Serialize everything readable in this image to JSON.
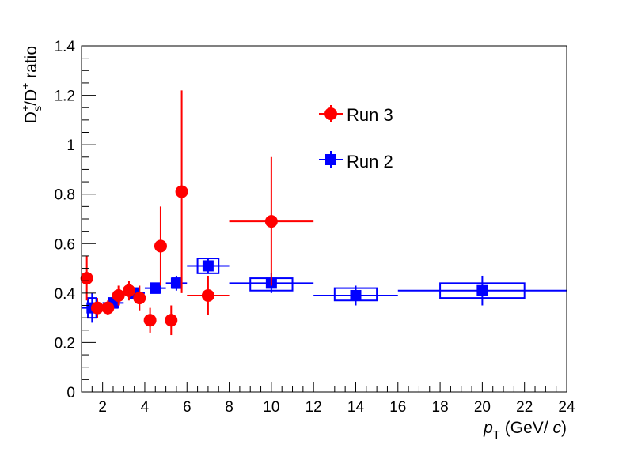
{
  "chart_data": {
    "type": "scatter",
    "title": "",
    "xlabel": {
      "var": "p",
      "sub": "T",
      "unit_pre": " (GeV/",
      "unit_var": " c",
      "unit_post": ")"
    },
    "ylabel": {
      "pre": "D",
      "sup1": "+",
      "sub1": "s",
      "mid": "/D",
      "sup2": "+",
      "post": " ratio"
    },
    "xlim": [
      1,
      24
    ],
    "ylim": [
      0,
      1.4
    ],
    "xticks": [
      2,
      4,
      6,
      8,
      10,
      12,
      14,
      16,
      18,
      20,
      22,
      24
    ],
    "yticks": [
      0,
      0.2,
      0.4,
      0.6,
      0.8,
      1,
      1.2,
      1.4
    ],
    "xtick_labels": [
      "2",
      "4",
      "6",
      "8",
      "10",
      "12",
      "14",
      "16",
      "18",
      "20",
      "22",
      "24"
    ],
    "ytick_labels": [
      "0",
      "0.2",
      "0.4",
      "0.6",
      "0.8",
      "1",
      "1.2",
      "1.4"
    ],
    "legend_position": "top-center",
    "grid": false,
    "series": [
      {
        "name": "Run 3",
        "color": "#ff0000",
        "marker": "circle",
        "points": [
          {
            "x": 1.25,
            "xlo": 1.0,
            "xhi": 1.5,
            "y": 0.46,
            "ylo": 0.37,
            "yhi": 0.55
          },
          {
            "x": 1.75,
            "xlo": 1.5,
            "xhi": 2.0,
            "y": 0.34,
            "ylo": 0.3,
            "yhi": 0.38
          },
          {
            "x": 2.25,
            "xlo": 2.0,
            "xhi": 2.5,
            "y": 0.34,
            "ylo": 0.31,
            "yhi": 0.37
          },
          {
            "x": 2.75,
            "xlo": 2.5,
            "xhi": 3.0,
            "y": 0.39,
            "ylo": 0.35,
            "yhi": 0.43
          },
          {
            "x": 3.25,
            "xlo": 3.0,
            "xhi": 3.5,
            "y": 0.41,
            "ylo": 0.37,
            "yhi": 0.45
          },
          {
            "x": 3.75,
            "xlo": 3.5,
            "xhi": 4.0,
            "y": 0.38,
            "ylo": 0.33,
            "yhi": 0.43
          },
          {
            "x": 4.25,
            "xlo": 4.0,
            "xhi": 4.5,
            "y": 0.29,
            "ylo": 0.24,
            "yhi": 0.34
          },
          {
            "x": 4.75,
            "xlo": 4.5,
            "xhi": 5.0,
            "y": 0.59,
            "ylo": 0.43,
            "yhi": 0.75
          },
          {
            "x": 5.25,
            "xlo": 5.0,
            "xhi": 5.5,
            "y": 0.29,
            "ylo": 0.23,
            "yhi": 0.35
          },
          {
            "x": 5.75,
            "xlo": 5.5,
            "xhi": 6.0,
            "y": 0.81,
            "ylo": 0.4,
            "yhi": 1.22
          },
          {
            "x": 7.0,
            "xlo": 6.0,
            "xhi": 8.0,
            "y": 0.39,
            "ylo": 0.31,
            "yhi": 0.47
          },
          {
            "x": 10.0,
            "xlo": 8.0,
            "xhi": 12.0,
            "y": 0.69,
            "ylo": 0.43,
            "yhi": 0.95
          }
        ]
      },
      {
        "name": "Run 2",
        "color": "#0000ff",
        "marker": "square",
        "points": [
          {
            "x": 1.5,
            "xlo": 1.0,
            "xhi": 2.0,
            "y": 0.34,
            "ylo": 0.28,
            "yhi": 0.4,
            "syslo": 0.3,
            "syshi": 0.38,
            "sysw": 0.4
          },
          {
            "x": 2.5,
            "xlo": 2.0,
            "xhi": 3.0,
            "y": 0.36,
            "ylo": 0.34,
            "yhi": 0.38,
            "syslo": 0.34,
            "syshi": 0.38,
            "sysw": 0.4
          },
          {
            "x": 3.5,
            "xlo": 3.0,
            "xhi": 4.0,
            "y": 0.4,
            "ylo": 0.38,
            "yhi": 0.42,
            "syslo": 0.38,
            "syshi": 0.42,
            "sysw": 0.4
          },
          {
            "x": 4.5,
            "xlo": 4.0,
            "xhi": 5.0,
            "y": 0.42,
            "ylo": 0.4,
            "yhi": 0.44,
            "syslo": 0.4,
            "syshi": 0.44,
            "sysw": 0.4
          },
          {
            "x": 5.5,
            "xlo": 5.0,
            "xhi": 6.0,
            "y": 0.44,
            "ylo": 0.41,
            "yhi": 0.47,
            "syslo": 0.42,
            "syshi": 0.46,
            "sysw": 0.4
          },
          {
            "x": 7.0,
            "xlo": 6.0,
            "xhi": 8.0,
            "y": 0.51,
            "ylo": 0.48,
            "yhi": 0.54,
            "syslo": 0.48,
            "syshi": 0.54,
            "sysw": 1.0
          },
          {
            "x": 10.0,
            "xlo": 8.0,
            "xhi": 12.0,
            "y": 0.44,
            "ylo": 0.4,
            "yhi": 0.48,
            "syslo": 0.41,
            "syshi": 0.46,
            "sysw": 2.0
          },
          {
            "x": 14.0,
            "xlo": 12.0,
            "xhi": 16.0,
            "y": 0.39,
            "ylo": 0.35,
            "yhi": 0.43,
            "syslo": 0.37,
            "syshi": 0.42,
            "sysw": 2.0
          },
          {
            "x": 20.0,
            "xlo": 16.0,
            "xhi": 24.0,
            "y": 0.41,
            "ylo": 0.35,
            "yhi": 0.47,
            "syslo": 0.38,
            "syshi": 0.44,
            "sysw": 4.0
          }
        ]
      }
    ]
  }
}
